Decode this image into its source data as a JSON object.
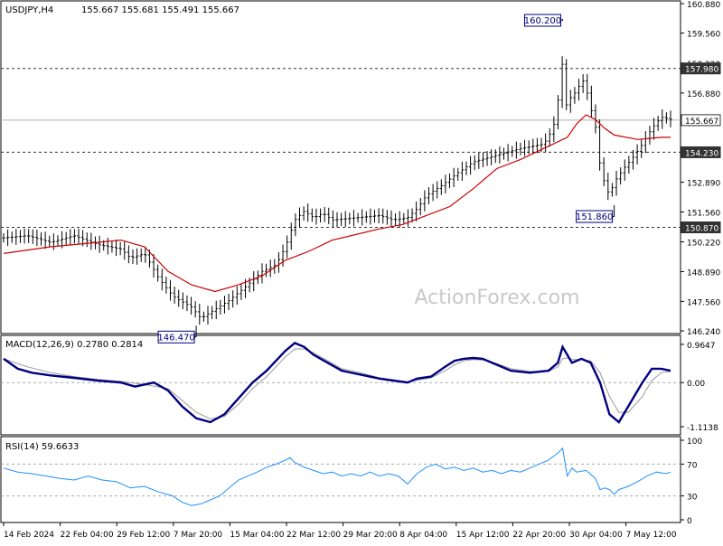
{
  "header": {
    "symbol": "USDJPY,H4",
    "ohlc": "155.667 155.681 155.491 155.667"
  },
  "watermark": "ActionForex.com",
  "colors": {
    "background": "#ffffff",
    "price_bars": "#000000",
    "moving_average": "#cc0000",
    "macd_line": "#000080",
    "signal_line": "#999999",
    "rsi_line": "#1e90ff",
    "level_line": "#333333",
    "label_fill": "#ffffff"
  },
  "chart_data": [
    {
      "type": "bar",
      "name": "price",
      "subtype": "ohlc",
      "title": "USDJPY,H4",
      "yticks": [
        "160.880",
        "159.560",
        "158.220",
        "156.880",
        "155.560",
        "154.230",
        "152.890",
        "151.560",
        "150.220",
        "148.890",
        "147.560",
        "146.240"
      ],
      "ylim": [
        146.24,
        160.88
      ],
      "x_ticks": [
        "14 Feb 2024",
        "22 Feb 04:00",
        "29 Feb 12:00",
        "7 Mar 20:00",
        "15 Mar 04:00",
        "22 Mar 12:00",
        "29 Mar 20:00",
        "8 Apr 04:00",
        "15 Apr 12:00",
        "22 Apr 20:00",
        "30 Apr 04:00",
        "7 May 12:00"
      ],
      "close_path": [
        [
          0,
          150.4
        ],
        [
          5,
          150.5
        ],
        [
          10,
          150.2
        ],
        [
          15,
          150.5
        ],
        [
          20,
          150.1
        ],
        [
          25,
          149.9
        ],
        [
          27,
          149.5
        ],
        [
          30,
          149.7
        ],
        [
          33,
          148.6
        ],
        [
          36,
          147.8
        ],
        [
          40,
          147.3
        ],
        [
          42,
          146.8
        ],
        [
          45,
          147.2
        ],
        [
          48,
          147.6
        ],
        [
          52,
          148.3
        ],
        [
          55,
          148.9
        ],
        [
          58,
          149.2
        ],
        [
          60,
          150.0
        ],
        [
          62,
          151.2
        ],
        [
          64,
          151.6
        ],
        [
          66,
          151.3
        ],
        [
          68,
          151.5
        ],
        [
          70,
          151.2
        ],
        [
          75,
          151.3
        ],
        [
          80,
          151.4
        ],
        [
          83,
          151.2
        ],
        [
          86,
          151.3
        ],
        [
          88,
          151.7
        ],
        [
          90,
          152.3
        ],
        [
          93,
          152.7
        ],
        [
          96,
          153.2
        ],
        [
          100,
          153.8
        ],
        [
          105,
          154.1
        ],
        [
          110,
          154.4
        ],
        [
          115,
          154.6
        ],
        [
          117,
          155.3
        ],
        [
          118,
          156.5
        ],
        [
          119,
          158.3
        ],
        [
          120,
          155.9
        ],
        [
          121,
          157.0
        ],
        [
          122,
          156.8
        ],
        [
          123,
          157.6
        ],
        [
          124,
          157.1
        ],
        [
          125,
          156.2
        ],
        [
          126,
          155.4
        ],
        [
          127,
          153.6
        ],
        [
          128,
          152.8
        ],
        [
          129,
          152.3
        ],
        [
          130,
          152.9
        ],
        [
          132,
          153.5
        ],
        [
          134,
          154.0
        ],
        [
          136,
          154.6
        ],
        [
          138,
          155.3
        ],
        [
          140,
          155.8
        ],
        [
          142,
          155.7
        ]
      ],
      "moving_average": [
        [
          0,
          149.7
        ],
        [
          10,
          150.0
        ],
        [
          20,
          150.2
        ],
        [
          25,
          150.3
        ],
        [
          30,
          150.0
        ],
        [
          35,
          148.9
        ],
        [
          40,
          148.3
        ],
        [
          45,
          148.0
        ],
        [
          50,
          148.3
        ],
        [
          55,
          148.7
        ],
        [
          60,
          149.4
        ],
        [
          65,
          149.8
        ],
        [
          70,
          150.3
        ],
        [
          80,
          150.8
        ],
        [
          85,
          151.0
        ],
        [
          90,
          151.4
        ],
        [
          95,
          151.8
        ],
        [
          100,
          152.6
        ],
        [
          105,
          153.5
        ],
        [
          110,
          153.9
        ],
        [
          115,
          154.4
        ],
        [
          120,
          154.9
        ],
        [
          122,
          155.5
        ],
        [
          124,
          155.9
        ],
        [
          126,
          155.7
        ],
        [
          128,
          155.3
        ],
        [
          130,
          155.0
        ],
        [
          135,
          154.8
        ],
        [
          140,
          154.9
        ],
        [
          142,
          154.9
        ]
      ],
      "levels": [
        {
          "value": 157.98,
          "label": "157.980",
          "style": "dashed"
        },
        {
          "value": 155.667,
          "label": "155.667",
          "style": "solid"
        },
        {
          "value": 154.23,
          "label": "154.230",
          "style": "dashed"
        },
        {
          "value": 150.87,
          "label": "150.870",
          "style": "dashed"
        }
      ],
      "annotations": [
        {
          "x": 119,
          "value": 160.2,
          "label": "160.200",
          "position": "above"
        },
        {
          "x": 130,
          "value": 151.86,
          "label": "151.860",
          "position": "below"
        },
        {
          "x": 41,
          "value": 146.47,
          "label": "146.470",
          "position": "below"
        }
      ]
    },
    {
      "type": "line",
      "name": "macd",
      "title": "MACD(12,26,9) 0.2780 0.2814",
      "yticks": [
        "0.9647",
        "0.00",
        "-1.1138"
      ],
      "ylim": [
        -1.25,
        1.1
      ],
      "zero_line": 0,
      "series": [
        {
          "name": "MACD",
          "values": [
            [
              0,
              0.6
            ],
            [
              3,
              0.35
            ],
            [
              6,
              0.25
            ],
            [
              10,
              0.18
            ],
            [
              15,
              0.12
            ],
            [
              20,
              0.05
            ],
            [
              25,
              0.0
            ],
            [
              28,
              -0.1
            ],
            [
              32,
              0.0
            ],
            [
              35,
              -0.2
            ],
            [
              38,
              -0.6
            ],
            [
              41,
              -0.9
            ],
            [
              44,
              -1.0
            ],
            [
              47,
              -0.8
            ],
            [
              50,
              -0.4
            ],
            [
              53,
              0.0
            ],
            [
              56,
              0.3
            ],
            [
              58,
              0.55
            ],
            [
              60,
              0.8
            ],
            [
              62,
              1.0
            ],
            [
              64,
              0.9
            ],
            [
              66,
              0.7
            ],
            [
              69,
              0.5
            ],
            [
              72,
              0.3
            ],
            [
              76,
              0.2
            ],
            [
              80,
              0.1
            ],
            [
              83,
              0.05
            ],
            [
              86,
              0.0
            ],
            [
              88,
              0.1
            ],
            [
              91,
              0.15
            ],
            [
              94,
              0.4
            ],
            [
              96,
              0.55
            ],
            [
              98,
              0.6
            ],
            [
              100,
              0.62
            ],
            [
              102,
              0.6
            ],
            [
              105,
              0.45
            ],
            [
              108,
              0.3
            ],
            [
              112,
              0.25
            ],
            [
              116,
              0.3
            ],
            [
              118,
              0.5
            ],
            [
              119,
              0.9
            ],
            [
              120,
              0.7
            ],
            [
              121,
              0.5
            ],
            [
              123,
              0.6
            ],
            [
              125,
              0.5
            ],
            [
              127,
              0.0
            ],
            [
              129,
              -0.8
            ],
            [
              131,
              -1.0
            ],
            [
              133,
              -0.6
            ],
            [
              136,
              0.0
            ],
            [
              138,
              0.35
            ],
            [
              140,
              0.35
            ],
            [
              142,
              0.3
            ]
          ]
        },
        {
          "name": "Signal",
          "values": [
            [
              0,
              0.6
            ],
            [
              5,
              0.4
            ],
            [
              10,
              0.25
            ],
            [
              15,
              0.15
            ],
            [
              20,
              0.08
            ],
            [
              25,
              0.03
            ],
            [
              30,
              -0.05
            ],
            [
              35,
              -0.15
            ],
            [
              38,
              -0.45
            ],
            [
              41,
              -0.75
            ],
            [
              44,
              -0.92
            ],
            [
              47,
              -0.85
            ],
            [
              50,
              -0.55
            ],
            [
              53,
              -0.15
            ],
            [
              56,
              0.15
            ],
            [
              58,
              0.4
            ],
            [
              60,
              0.65
            ],
            [
              62,
              0.85
            ],
            [
              64,
              0.85
            ],
            [
              66,
              0.75
            ],
            [
              69,
              0.55
            ],
            [
              72,
              0.35
            ],
            [
              76,
              0.25
            ],
            [
              80,
              0.12
            ],
            [
              83,
              0.06
            ],
            [
              86,
              0.02
            ],
            [
              88,
              0.06
            ],
            [
              91,
              0.12
            ],
            [
              94,
              0.3
            ],
            [
              96,
              0.45
            ],
            [
              98,
              0.55
            ],
            [
              100,
              0.58
            ],
            [
              102,
              0.57
            ],
            [
              105,
              0.48
            ],
            [
              108,
              0.35
            ],
            [
              112,
              0.28
            ],
            [
              116,
              0.28
            ],
            [
              118,
              0.4
            ],
            [
              119,
              0.6
            ],
            [
              120,
              0.62
            ],
            [
              121,
              0.58
            ],
            [
              123,
              0.58
            ],
            [
              125,
              0.55
            ],
            [
              127,
              0.25
            ],
            [
              129,
              -0.35
            ],
            [
              131,
              -0.75
            ],
            [
              133,
              -0.75
            ],
            [
              136,
              -0.35
            ],
            [
              138,
              0.05
            ],
            [
              140,
              0.25
            ],
            [
              142,
              0.28
            ]
          ]
        }
      ]
    },
    {
      "type": "line",
      "name": "rsi",
      "title": "RSI(14) 59.6633",
      "yticks": [
        "100",
        "70",
        "30",
        "0"
      ],
      "ylim": [
        0,
        100
      ],
      "levels": [
        70,
        30
      ],
      "series": [
        {
          "name": "RSI",
          "values": [
            [
              0,
              65
            ],
            [
              3,
              60
            ],
            [
              6,
              58
            ],
            [
              9,
              55
            ],
            [
              12,
              52
            ],
            [
              15,
              50
            ],
            [
              18,
              55
            ],
            [
              21,
              50
            ],
            [
              24,
              48
            ],
            [
              27,
              40
            ],
            [
              30,
              42
            ],
            [
              33,
              35
            ],
            [
              36,
              30
            ],
            [
              38,
              22
            ],
            [
              40,
              18
            ],
            [
              42,
              20
            ],
            [
              44,
              25
            ],
            [
              46,
              30
            ],
            [
              48,
              40
            ],
            [
              50,
              50
            ],
            [
              52,
              55
            ],
            [
              54,
              60
            ],
            [
              56,
              66
            ],
            [
              58,
              70
            ],
            [
              60,
              75
            ],
            [
              61,
              78
            ],
            [
              62,
              72
            ],
            [
              64,
              66
            ],
            [
              66,
              62
            ],
            [
              68,
              58
            ],
            [
              70,
              60
            ],
            [
              72,
              55
            ],
            [
              74,
              58
            ],
            [
              76,
              55
            ],
            [
              78,
              60
            ],
            [
              80,
              55
            ],
            [
              82,
              58
            ],
            [
              84,
              55
            ],
            [
              86,
              45
            ],
            [
              88,
              58
            ],
            [
              90,
              66
            ],
            [
              92,
              70
            ],
            [
              94,
              64
            ],
            [
              96,
              66
            ],
            [
              98,
              62
            ],
            [
              100,
              65
            ],
            [
              102,
              60
            ],
            [
              104,
              62
            ],
            [
              106,
              58
            ],
            [
              108,
              62
            ],
            [
              110,
              60
            ],
            [
              112,
              65
            ],
            [
              114,
              70
            ],
            [
              116,
              75
            ],
            [
              118,
              84
            ],
            [
              119,
              90
            ],
            [
              120,
              55
            ],
            [
              121,
              65
            ],
            [
              122,
              60
            ],
            [
              124,
              62
            ],
            [
              126,
              52
            ],
            [
              127,
              38
            ],
            [
              128,
              40
            ],
            [
              129,
              38
            ],
            [
              130,
              32
            ],
            [
              131,
              38
            ],
            [
              133,
              42
            ],
            [
              135,
              48
            ],
            [
              137,
              55
            ],
            [
              139,
              60
            ],
            [
              141,
              58
            ],
            [
              142,
              60
            ]
          ]
        }
      ]
    }
  ]
}
